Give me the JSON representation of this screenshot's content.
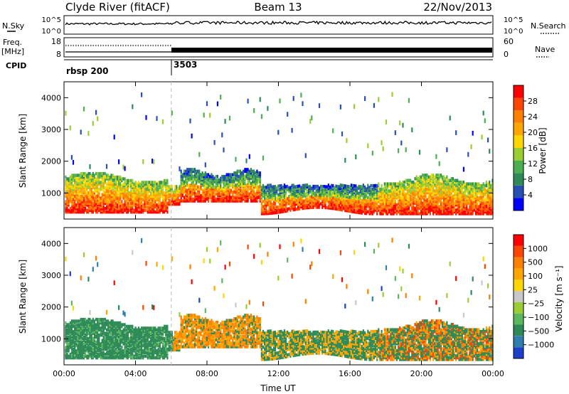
{
  "header": {
    "station": "Clyde River (fitACF)",
    "beam": "Beam 13",
    "date": "22/Nov/2013"
  },
  "nsky_panel": {
    "left_label": "N.Sky",
    "right_label": "N.Search",
    "left_ticks": [
      "10^5",
      "10^0"
    ],
    "right_ticks": [
      "10^5",
      "10^0"
    ]
  },
  "freq_panel": {
    "left_label_1": "Freq.",
    "left_label_2": "[MHz]",
    "right_label": "Nave",
    "left_ticks": [
      "18",
      "8"
    ],
    "right_ticks": [
      "60",
      "0"
    ]
  },
  "cpid": {
    "label": "CPID",
    "segments": [
      {
        "name": "rbsp 200",
        "start_hour": 0
      },
      {
        "name": "3503",
        "start_hour": 6
      }
    ]
  },
  "colors": {
    "power": [
      "#0000ff",
      "#2850b4",
      "#2e8b57",
      "#4caf50",
      "#9acd32",
      "#ffd700",
      "#ffa500",
      "#ff7f00",
      "#ff4500",
      "#ff0000"
    ],
    "velocity": [
      "#1e40c8",
      "#2e7fb0",
      "#2e8b57",
      "#5cb85c",
      "#9acd32",
      "#c8c8c8",
      "#ffd700",
      "#ffa500",
      "#ff7f00",
      "#ff4500",
      "#ff0000"
    ]
  },
  "chart_data": [
    {
      "type": "heatmap",
      "ylabel": "Slant Range [km]",
      "ylim": [
        180,
        4500
      ],
      "yticks": [
        "1000",
        "2000",
        "3000",
        "4000"
      ],
      "xlim": [
        0,
        24
      ],
      "xticks": [
        "00:00",
        "04:00",
        "08:00",
        "12:00",
        "16:00",
        "20:00",
        "00:00"
      ],
      "colorbar": {
        "label": "Power [dB]",
        "ticks": [
          "28",
          "24",
          "20",
          "16",
          "12",
          "8",
          "4"
        ],
        "range": [
          0,
          32
        ]
      }
    },
    {
      "type": "heatmap",
      "ylabel": "Slant Range [km]",
      "ylim": [
        180,
        4500
      ],
      "yticks": [
        "1000",
        "2000",
        "3000",
        "4000"
      ],
      "xlim": [
        0,
        24
      ],
      "xticks": [
        "00:00",
        "04:00",
        "08:00",
        "12:00",
        "16:00",
        "20:00",
        "00:00"
      ],
      "xlabel": "Time UT",
      "colorbar": {
        "label": "Velocity [m s⁻¹]",
        "ticks": [
          "1000",
          "500",
          "100",
          "25",
          "−25",
          "−100",
          "−500",
          "−1000"
        ]
      }
    }
  ]
}
